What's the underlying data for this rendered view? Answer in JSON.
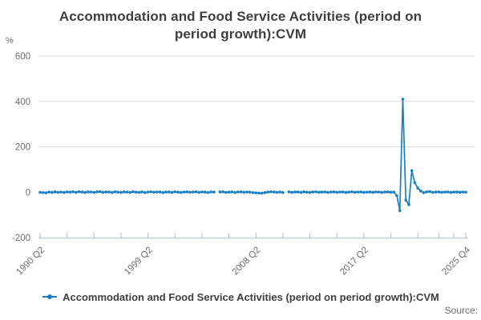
{
  "title": "Accommodation and Food Service Activities (period on\nperiod growth):CVM",
  "y_axis": {
    "unit": "%",
    "ticks": [
      600,
      400,
      200,
      0,
      -200
    ],
    "range": [
      -200,
      600
    ]
  },
  "x_axis": {
    "tick_labels": [
      "1990 Q2",
      "1999 Q2",
      "2008 Q2",
      "2017 Q2",
      "2025 Q4"
    ]
  },
  "legend": {
    "series_label": "Accommodation and Food Service Activities (period on period growth):CVM"
  },
  "source_label": "Source:",
  "colors": {
    "series_line": "#1B7FC4",
    "gridline": "#DADADA",
    "axis_line": "#BCC9D9",
    "title_text": "#3F3F42",
    "tick_label_text": "#6E6E6E"
  },
  "chart_data": {
    "type": "line",
    "title": "Accommodation and Food Service Activities (period on period growth):CVM",
    "ylabel": "%",
    "ylim": [
      -200,
      600
    ],
    "y_tick_values": [
      600,
      400,
      200,
      0,
      -200
    ],
    "grid": "horizontal",
    "legend_position": "bottom",
    "frequency": "quarterly",
    "start_period": "1990 Q2",
    "end_period": "2025 Q4",
    "x_labeled_ticks": [
      {
        "quarter_index": 0,
        "label": "1990 Q2"
      },
      {
        "quarter_index": 36,
        "label": "1999 Q2"
      },
      {
        "quarter_index": 72,
        "label": "2008 Q2"
      },
      {
        "quarter_index": 108,
        "label": "2017 Q2"
      },
      {
        "quarter_index": 142,
        "label": "2025 Q4"
      }
    ],
    "x_minor_tick_quarter_indices": [
      0,
      9,
      18,
      27,
      36,
      45,
      54,
      63,
      72,
      81,
      90,
      99,
      108,
      117,
      126,
      133,
      138,
      142
    ],
    "series": [
      {
        "name": "Accommodation and Food Service Activities (period on period growth):CVM",
        "values": [
          -0.5,
          -1.8,
          -2.5,
          0.8,
          -1.2,
          1.5,
          -0.6,
          0.9,
          -1.0,
          1.2,
          0.4,
          1.8,
          -0.7,
          2.2,
          0.6,
          -1.1,
          1.4,
          0.8,
          -0.9,
          1.6,
          2.0,
          -0.5,
          1.1,
          0.7,
          -1.3,
          1.9,
          0.3,
          -0.8,
          1.5,
          0.6,
          -1.0,
          2.1,
          0.4,
          -0.6,
          1.3,
          -1.4,
          0.9,
          1.7,
          -0.4,
          0.8,
          1.2,
          -1.6,
          0.5,
          1.0,
          -0.7,
          1.8,
          0.2,
          -1.2,
          0.9,
          1.4,
          -0.3,
          0.7,
          1.6,
          -0.9,
          1.1,
          0.5,
          -1.5,
          1.3,
          0.6,
          null,
          1.0,
          1.9,
          -0.8,
          0.6,
          1.2,
          -1.1,
          0.8,
          1.5,
          -0.5,
          0.9,
          0.3,
          -1.9,
          -2.8,
          -3.5,
          -4.2,
          -2.0,
          0.5,
          1.8,
          0.9,
          -0.6,
          1.1,
          -1.3,
          null,
          1.6,
          -0.5,
          0.8,
          1.2,
          -0.9,
          1.4,
          0.3,
          -0.7,
          1.0,
          1.8,
          -0.4,
          0.6,
          1.3,
          -1.0,
          0.9,
          1.5,
          -0.6,
          0.8,
          1.1,
          -1.2,
          0.5,
          1.7,
          -0.3,
          0.9,
          1.2,
          -0.8,
          0.4,
          1.0,
          -0.5,
          1.3,
          0.7,
          -1.1,
          0.8,
          1.5,
          -0.4,
          0.6,
          -15,
          -81,
          410,
          -35,
          -55,
          95,
          42,
          18,
          5.0,
          -2.0,
          1.5,
          3.0,
          -1.0,
          0.8,
          1.2,
          -0.6,
          0.9,
          1.1,
          -0.8,
          0.5,
          1.0,
          -0.4,
          0.7,
          0.3
        ]
      }
    ]
  }
}
